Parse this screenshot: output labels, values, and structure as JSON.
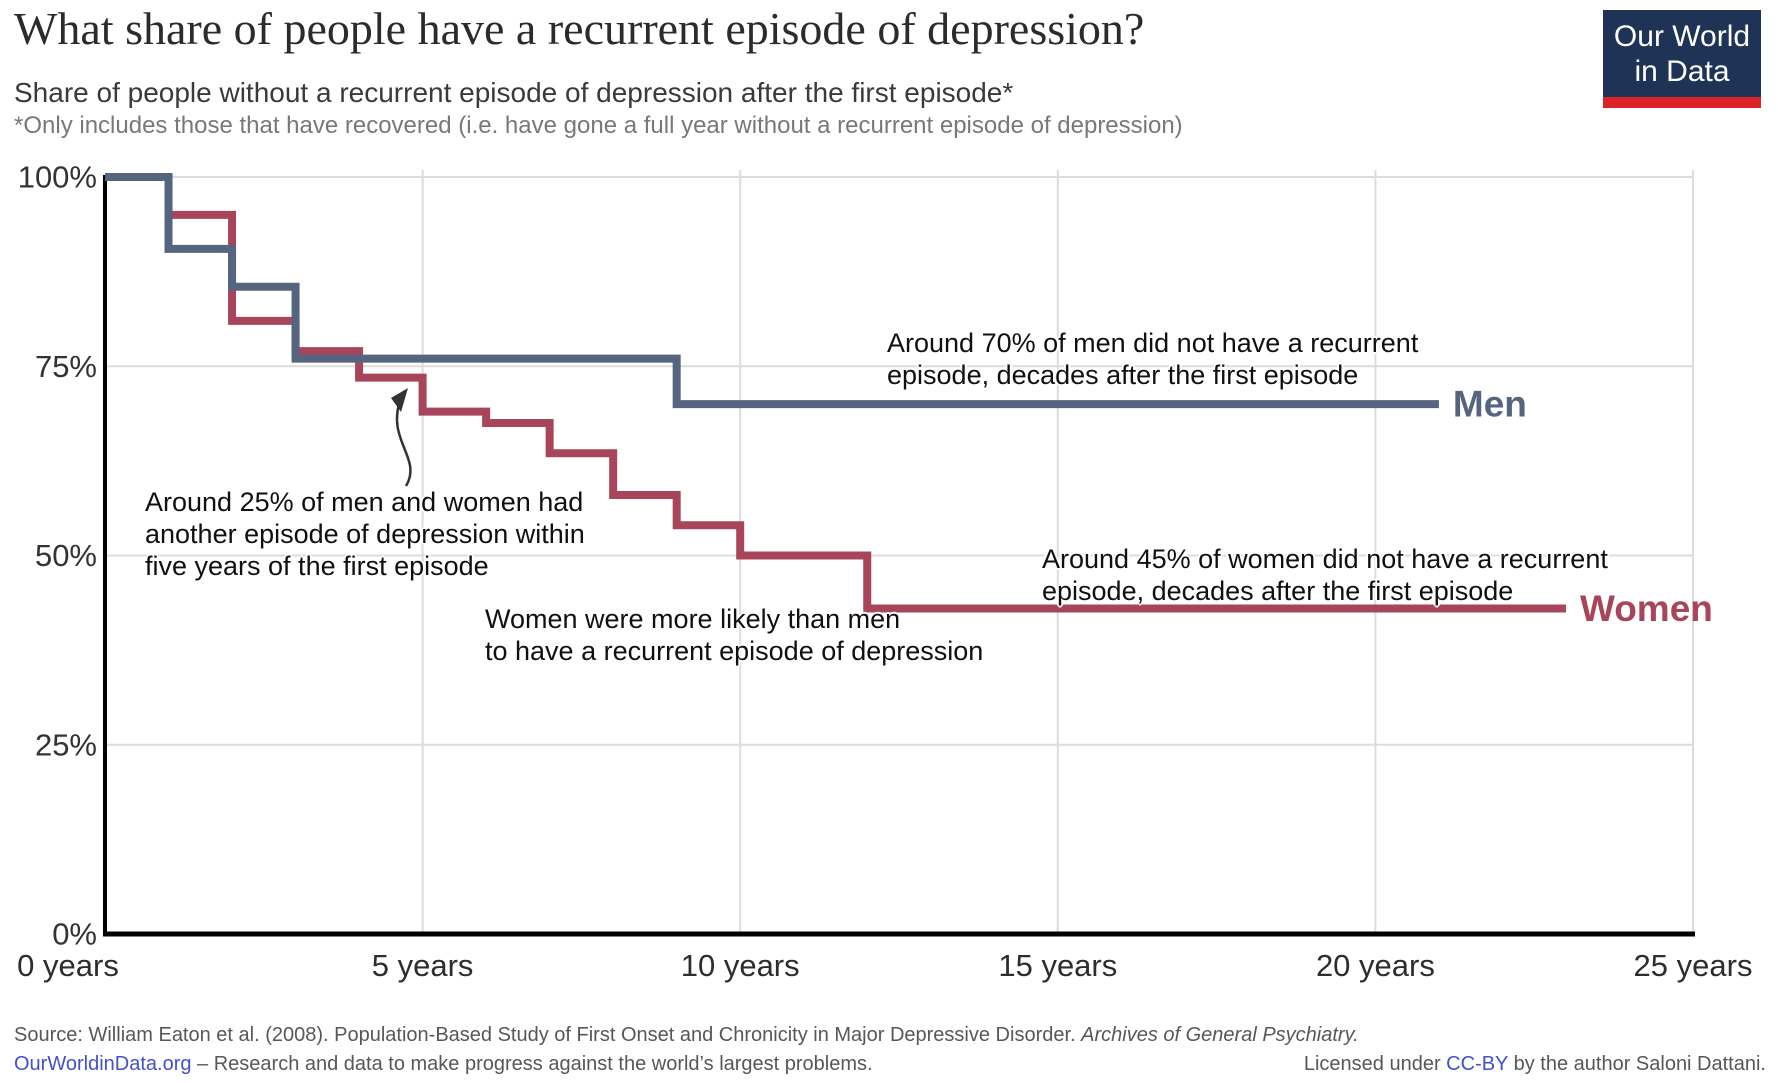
{
  "header": {
    "title": "What share of people have a recurrent episode of depression?",
    "subtitle": "Share of people without a recurrent episode of depression after the first episode*",
    "footnote": "*Only includes those that have recovered (i.e. have gone a full year without a recurrent episode of depression)",
    "logo": {
      "line1": "Our World",
      "line2": "in Data",
      "bg_color": "#1f3356",
      "bar_color": "#dc2327"
    }
  },
  "chart_data": {
    "type": "line",
    "step": "after",
    "title": "Share of people without a recurrent episode of depression after the first episode",
    "grid": true,
    "x_axis": {
      "range": [
        0,
        25
      ],
      "ticks": [
        0,
        5,
        10,
        15,
        20,
        25
      ],
      "tick_labels": [
        "0 years",
        "5 years",
        "10 years",
        "15 years",
        "20 years",
        "25 years"
      ]
    },
    "y_axis": {
      "range": [
        0,
        100
      ],
      "ticks": [
        0,
        25,
        50,
        75,
        100
      ],
      "tick_labels": [
        "0%",
        "25%",
        "50%",
        "75%",
        "100%"
      ],
      "unit": "%"
    },
    "series": [
      {
        "name": "Men",
        "end_label": "Men",
        "color": "#55647F",
        "x": [
          0,
          1,
          2,
          3,
          9,
          21
        ],
        "y": [
          100,
          90.5,
          85.5,
          76,
          70,
          70
        ]
      },
      {
        "name": "Women",
        "end_label": "Women",
        "color": "#A8455A",
        "x": [
          0,
          1,
          2,
          3,
          4,
          5,
          6,
          7,
          8,
          9,
          10,
          12,
          23
        ],
        "y": [
          100,
          95,
          81,
          77,
          73.5,
          69,
          67.5,
          63.5,
          58,
          54,
          50,
          43,
          43
        ]
      }
    ],
    "annotations": [
      {
        "id": "men-note",
        "lines": [
          "Around 70% of men did not have a recurrent",
          "episode, decades after the first episode"
        ]
      },
      {
        "id": "recurrence-note",
        "lines": [
          "Around 25% of men and women had",
          "another episode of depression within",
          "five years of the first episode"
        ]
      },
      {
        "id": "women-likely-note",
        "lines": [
          "Women were more likely than men",
          "to have a recurrent episode of depression"
        ]
      },
      {
        "id": "women-note",
        "lines": [
          "Around 45% of women did not have a recurrent",
          "episode, decades after the first episode"
        ]
      }
    ]
  },
  "footer": {
    "source_prefix": "Source: William Eaton et al. (2008). Population-Based Study of First Onset and Chronicity in Major Depressive Disorder. ",
    "source_journal": "Archives of General Psychiatry.",
    "site_link": "OurWorldinData.org",
    "site_tagline": " – Research and data to make progress against the world’s largest problems.",
    "license_prefix": "Licensed under ",
    "license_link": "CC-BY",
    "license_suffix": " by the author Saloni Dattani."
  }
}
